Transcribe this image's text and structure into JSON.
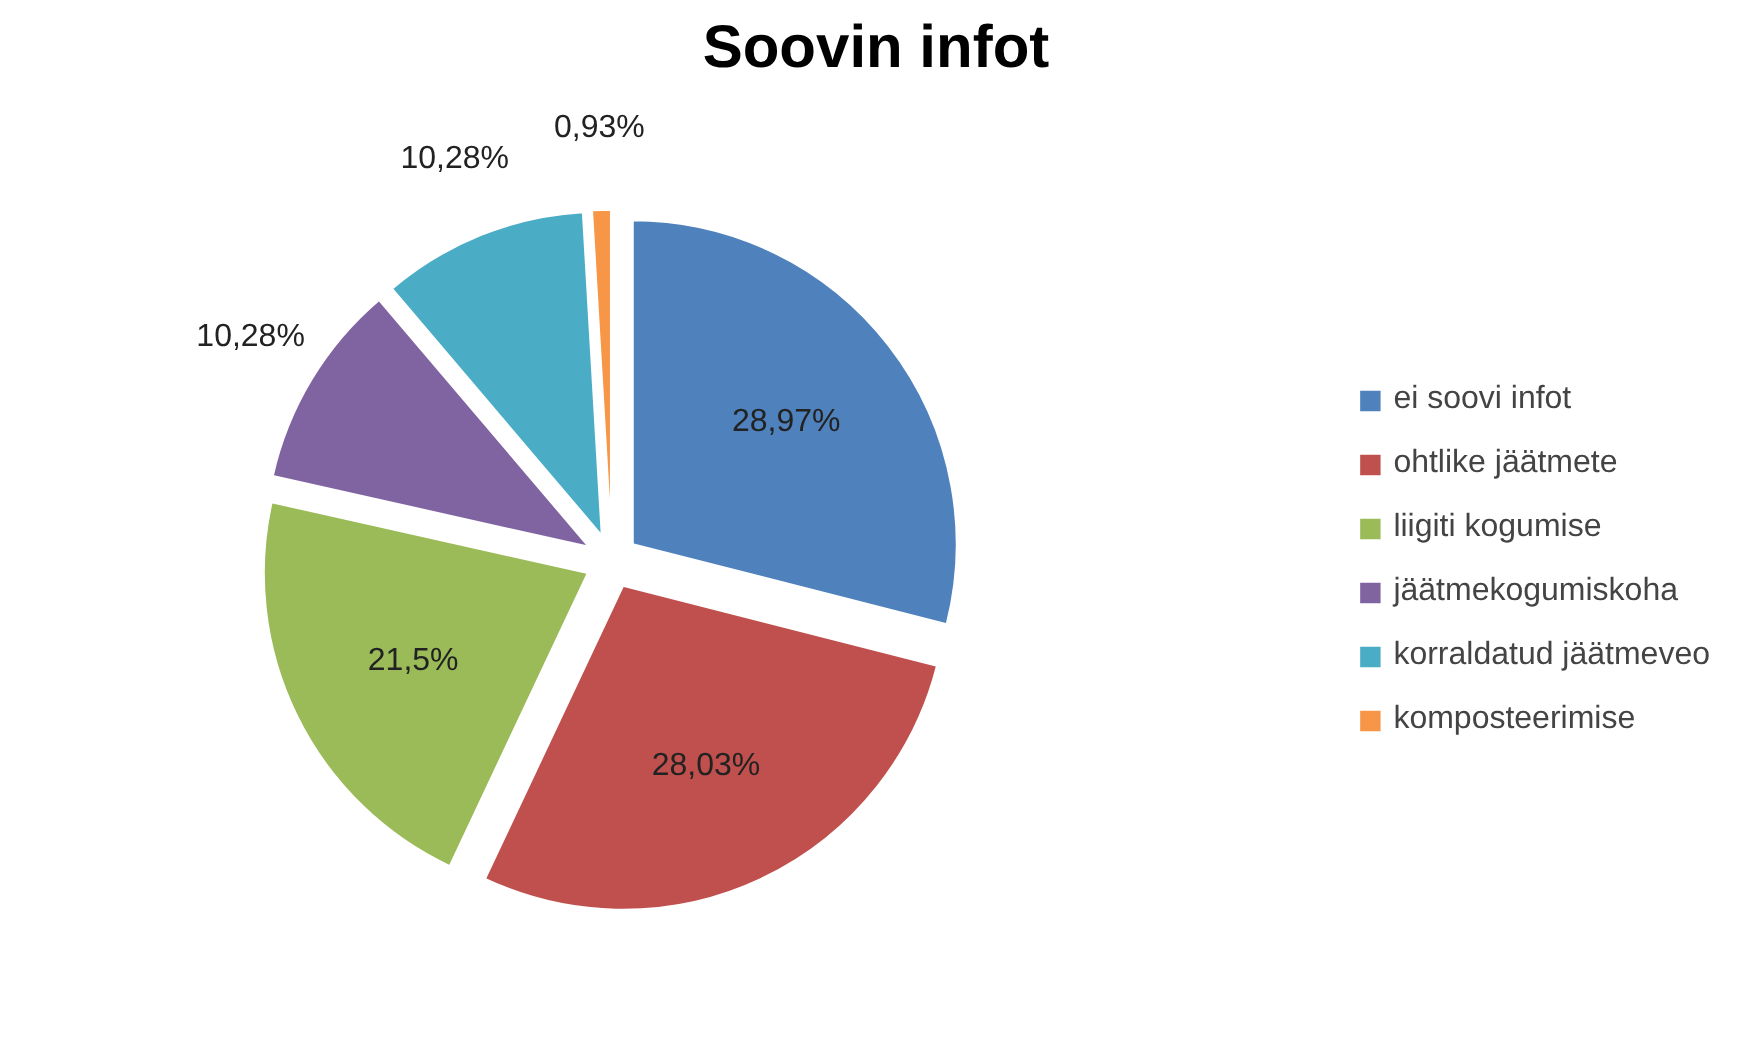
{
  "chart_data": {
    "type": "pie",
    "title": "Soovin infot",
    "categories": [
      "ei soovi infot",
      "ohtlike jäätmete",
      "liigiti kogumise",
      "jäätmekogumiskoha",
      "korraldatud jäätmeveo",
      "komposteerimise"
    ],
    "values": [
      28.97,
      28.03,
      21.5,
      10.28,
      10.28,
      0.93
    ],
    "colors": [
      "#4f81bd",
      "#c0504d",
      "#9bbb59",
      "#8064a2",
      "#4bacc6",
      "#f79646"
    ],
    "value_labels": [
      "28,97%",
      "28,03%",
      "21,5%",
      "10,28%",
      "10,28%",
      "0,93%"
    ],
    "legend": "right"
  }
}
